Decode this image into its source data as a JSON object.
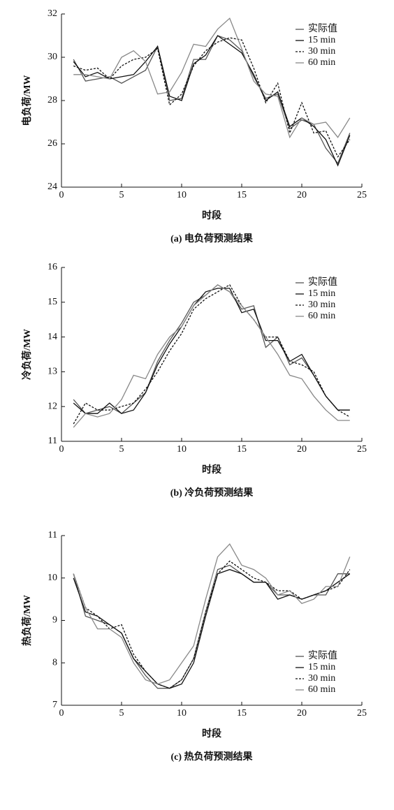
{
  "chart_data": [
    {
      "type": "line",
      "caption": "(a) 电负荷预测结果",
      "xlabel": "时段",
      "ylabel": "电负荷/MW",
      "x": [
        1,
        2,
        3,
        4,
        5,
        6,
        7,
        8,
        9,
        10,
        11,
        12,
        13,
        14,
        15,
        16,
        17,
        18,
        19,
        20,
        21,
        22,
        23,
        24
      ],
      "xlim": [
        0,
        25
      ],
      "xticks": [
        0,
        5,
        10,
        15,
        20,
        25
      ],
      "ylim": [
        24,
        32
      ],
      "yticks": [
        24,
        26,
        28,
        30,
        32
      ],
      "legend": "upper-right",
      "series": [
        {
          "name": "实际值",
          "color": "#555555",
          "dashed": false,
          "values": [
            29.9,
            28.9,
            29.0,
            29.1,
            28.8,
            29.1,
            29.4,
            30.5,
            28.0,
            28.1,
            29.9,
            29.9,
            31.0,
            30.8,
            30.3,
            29.1,
            28.1,
            28.3,
            26.7,
            27.1,
            26.9,
            25.8,
            25.1,
            26.5
          ]
        },
        {
          "name": "15 min",
          "color": "#111111",
          "dashed": false,
          "values": [
            29.8,
            29.1,
            29.3,
            29.0,
            29.1,
            29.2,
            29.8,
            30.5,
            28.2,
            28.0,
            29.7,
            30.1,
            31.0,
            30.6,
            30.2,
            29.2,
            28.0,
            28.4,
            26.8,
            27.2,
            26.8,
            26.2,
            25.0,
            26.4
          ]
        },
        {
          "name": "30 min",
          "color": "#111111",
          "dashed": true,
          "values": [
            29.6,
            29.4,
            29.5,
            29.0,
            29.6,
            29.9,
            30.0,
            30.4,
            27.8,
            28.3,
            29.6,
            30.3,
            30.7,
            30.9,
            30.8,
            29.5,
            27.9,
            28.8,
            26.5,
            27.9,
            26.5,
            26.6,
            25.4,
            26.2
          ]
        },
        {
          "name": "60 min",
          "color": "#888888",
          "dashed": false,
          "values": [
            29.2,
            29.2,
            29.1,
            29.0,
            30.0,
            30.3,
            29.8,
            28.3,
            28.4,
            29.3,
            30.6,
            30.5,
            31.3,
            31.8,
            30.4,
            28.9,
            28.3,
            28.2,
            26.3,
            27.2,
            26.9,
            27.0,
            26.3,
            27.2
          ]
        }
      ]
    },
    {
      "type": "line",
      "caption": "(b) 冷负荷预测结果",
      "xlabel": "时段",
      "ylabel": "冷负荷/MW",
      "x": [
        1,
        2,
        3,
        4,
        5,
        6,
        7,
        8,
        9,
        10,
        11,
        12,
        13,
        14,
        15,
        16,
        17,
        18,
        19,
        20,
        21,
        22,
        23,
        24
      ],
      "xlim": [
        0,
        25
      ],
      "xticks": [
        0,
        5,
        10,
        15,
        20,
        25
      ],
      "ylim": [
        11,
        16
      ],
      "yticks": [
        11,
        12,
        13,
        14,
        15,
        16
      ],
      "legend": "upper-right",
      "series": [
        {
          "name": "实际值",
          "color": "#555555",
          "dashed": false,
          "values": [
            12.2,
            11.8,
            11.9,
            12.0,
            11.8,
            12.1,
            12.4,
            13.3,
            13.9,
            14.4,
            15.0,
            15.2,
            15.5,
            15.3,
            14.8,
            14.9,
            13.7,
            14.0,
            13.2,
            13.4,
            12.9,
            12.3,
            11.9,
            11.9
          ]
        },
        {
          "name": "15 min",
          "color": "#111111",
          "dashed": false,
          "values": [
            12.1,
            11.8,
            11.8,
            12.1,
            11.8,
            11.9,
            12.4,
            13.2,
            13.8,
            14.3,
            14.9,
            15.3,
            15.4,
            15.4,
            14.7,
            14.8,
            13.9,
            13.9,
            13.3,
            13.5,
            12.9,
            12.3,
            11.9,
            11.9
          ]
        },
        {
          "name": "30 min",
          "color": "#111111",
          "dashed": true,
          "values": [
            11.5,
            12.1,
            11.9,
            11.9,
            12.0,
            12.1,
            12.5,
            13.0,
            13.6,
            14.1,
            14.8,
            15.1,
            15.3,
            15.5,
            14.9,
            14.5,
            14.0,
            14.0,
            13.3,
            13.2,
            13.0,
            12.3,
            11.9,
            11.7
          ]
        },
        {
          "name": "60 min",
          "color": "#888888",
          "dashed": false,
          "values": [
            11.4,
            11.8,
            11.7,
            11.8,
            12.2,
            12.9,
            12.8,
            13.5,
            14.0,
            14.3,
            14.9,
            15.2,
            15.5,
            15.3,
            14.9,
            14.5,
            14.0,
            13.5,
            12.9,
            12.8,
            12.3,
            11.9,
            11.6,
            11.6
          ]
        }
      ]
    },
    {
      "type": "line",
      "caption": "(c) 热负荷预测结果",
      "xlabel": "时段",
      "ylabel": "热负荷/MW",
      "x": [
        1,
        2,
        3,
        4,
        5,
        6,
        7,
        8,
        9,
        10,
        11,
        12,
        13,
        14,
        15,
        16,
        17,
        18,
        19,
        20,
        21,
        22,
        23,
        24
      ],
      "xlim": [
        0,
        25
      ],
      "xticks": [
        0,
        5,
        10,
        15,
        20,
        25
      ],
      "ylim": [
        7,
        11
      ],
      "yticks": [
        7,
        8,
        9,
        10,
        11
      ],
      "legend": "lower-right",
      "series": [
        {
          "name": "实际值",
          "color": "#555555",
          "dashed": false,
          "values": [
            10.1,
            9.1,
            9.0,
            8.9,
            8.7,
            8.1,
            7.7,
            7.4,
            7.4,
            7.6,
            8.1,
            9.2,
            10.2,
            10.3,
            10.1,
            9.9,
            9.9,
            9.6,
            9.6,
            9.5,
            9.6,
            9.6,
            10.1,
            10.1
          ]
        },
        {
          "name": "15 min",
          "color": "#111111",
          "dashed": false,
          "values": [
            10.0,
            9.2,
            9.1,
            8.9,
            8.7,
            8.1,
            7.8,
            7.5,
            7.4,
            7.5,
            8.0,
            9.1,
            10.1,
            10.2,
            10.1,
            9.9,
            9.9,
            9.5,
            9.6,
            9.5,
            9.6,
            9.7,
            9.9,
            10.1
          ]
        },
        {
          "name": "30 min",
          "color": "#111111",
          "dashed": true,
          "values": [
            10.1,
            9.3,
            9.1,
            8.8,
            8.9,
            8.2,
            7.8,
            7.5,
            7.4,
            7.6,
            8.1,
            9.2,
            10.1,
            10.4,
            10.2,
            10.0,
            9.9,
            9.7,
            9.7,
            9.5,
            9.6,
            9.7,
            9.8,
            10.2
          ]
        },
        {
          "name": "60 min",
          "color": "#888888",
          "dashed": false,
          "values": [
            10.1,
            9.3,
            8.8,
            8.8,
            8.6,
            8.0,
            7.6,
            7.5,
            7.6,
            8.0,
            8.4,
            9.5,
            10.5,
            10.8,
            10.3,
            10.2,
            10.0,
            9.6,
            9.7,
            9.4,
            9.5,
            9.8,
            9.8,
            10.5
          ]
        }
      ]
    }
  ]
}
